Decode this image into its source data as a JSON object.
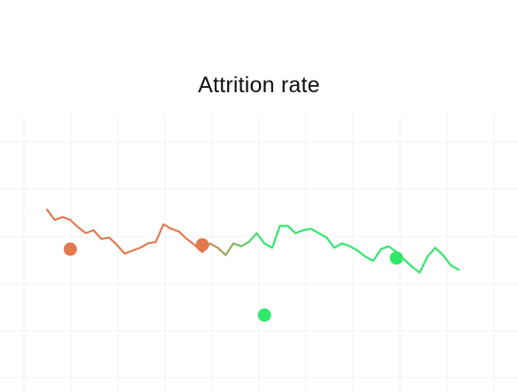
{
  "chart_data": {
    "type": "line",
    "title": "Attrition rate",
    "xlabel": "",
    "ylabel": "",
    "grid": true,
    "x_count": 54,
    "ylim": [
      0,
      100
    ],
    "series": [
      {
        "values": [
          87,
          80,
          82,
          80,
          75,
          71,
          73,
          67,
          68,
          63,
          57,
          59,
          61,
          64,
          65,
          77,
          74,
          72,
          67,
          63,
          58,
          64,
          61,
          56,
          64,
          62,
          65,
          71,
          64,
          61,
          76,
          76,
          71,
          73,
          74,
          71,
          68,
          61,
          64,
          62,
          59,
          55,
          52,
          60,
          62,
          58,
          53,
          48,
          44,
          55,
          61,
          56,
          49,
          46
        ],
        "colors": {
          "start": "#e3774d",
          "end": "#2ee86a"
        }
      }
    ],
    "markers": [
      {
        "index": 3,
        "value": 60,
        "color": "#e3774d"
      },
      {
        "index": 20,
        "value": 63,
        "color": "#e3774d"
      },
      {
        "index": 28,
        "value": 15,
        "color": "#2ee86a"
      },
      {
        "index": 45,
        "value": 54,
        "color": "#2ee86a"
      }
    ]
  }
}
